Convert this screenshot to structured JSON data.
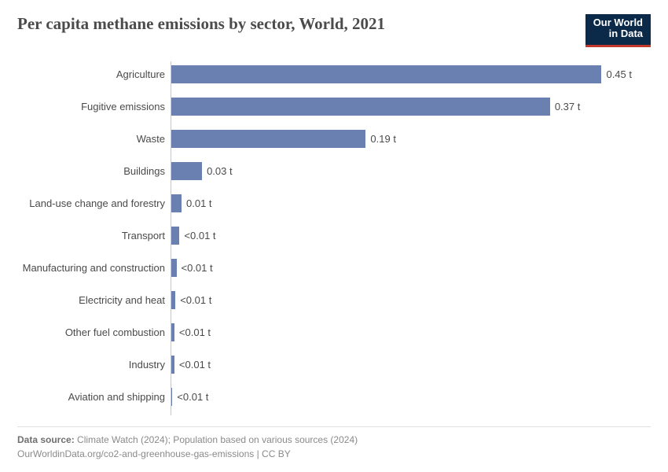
{
  "title": "Per capita methane emissions by sector, World, 2021",
  "title_fontsize": 21,
  "title_color": "#4b4b4b",
  "logo": {
    "line1": "Our World",
    "line2": "in Data",
    "bg": "#0b2a4a",
    "underline": "#c0392b",
    "fontsize": 13
  },
  "chart": {
    "type": "bar-horizontal",
    "bar_color": "#6a80b0",
    "axis_color": "#c7c7c7",
    "label_fontsize": 13,
    "value_fontsize": 13,
    "xmax": 0.45,
    "row_height_pct": 5.2,
    "row_gap_pct": 3.9,
    "top_offset_pct": 1.2,
    "categories": [
      "Agriculture",
      "Fugitive emissions",
      "Waste",
      "Buildings",
      "Land-use change and forestry",
      "Transport",
      "Manufacturing and construction",
      "Electricity and heat",
      "Other fuel combustion",
      "Industry",
      "Aviation and shipping"
    ],
    "values": [
      0.45,
      0.37,
      0.19,
      0.03,
      0.01,
      0.008,
      0.005,
      0.004,
      0.003,
      0.003,
      0.001
    ],
    "value_labels": [
      "0.45 t",
      "0.37 t",
      "0.19 t",
      "0.03 t",
      "0.01 t",
      "<0.01 t",
      "<0.01 t",
      "<0.01 t",
      "<0.01 t",
      "<0.01 t",
      "<0.01 t"
    ]
  },
  "footer": {
    "source_label": "Data source:",
    "source_text": "Climate Watch (2024); Population based on various sources (2024)",
    "url_line": "OurWorldinData.org/co2-and-greenhouse-gas-emissions | CC BY",
    "fontsize": 12
  }
}
